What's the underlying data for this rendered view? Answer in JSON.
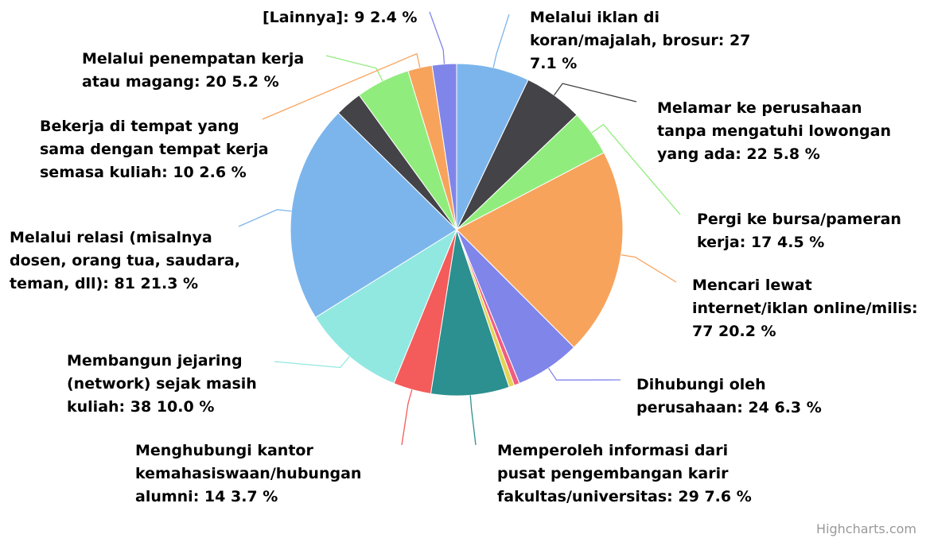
{
  "chart_data": {
    "type": "pie",
    "categories": [
      "Melalui iklan di koran/majalah, brosur:",
      "Melamar ke perusahaan tanpa mengatuhi lowongan yang ada:",
      "Pergi ke bursa/pameran kerja:",
      "Mencari lewat internet/iklan online/milis:",
      "Dihubungi oleh perusahaan:",
      null,
      null,
      "Memperoleh informasi dari pusat pengembangan karir fakultas/universitas:",
      "Menghubungi kantor kemahasiswaan/hubungan alumni:",
      "Membangun jejaring (network) sejak masih kuliah:",
      "Melalui relasi (misalnya dosen, orang tua, saudara, teman, dll):",
      "Bekerja di tempat yang sama dengan tempat kerja semasa kuliah:",
      "Melalui penempatan kerja atau magang:",
      null,
      "[Lainnya]:"
    ],
    "values": [
      27,
      22,
      17,
      77,
      24,
      2,
      2,
      29,
      14,
      38,
      81,
      10,
      20,
      9,
      9
    ],
    "value_labels": [
      "27 7.1 %",
      "22 5.8 %",
      "17 4.5 %",
      "77 20.2 %",
      "24 6.3 %",
      null,
      null,
      "29 7.6 %",
      "14 3.7 %",
      "38 10.0 %",
      "81 21.3 %",
      "10 2.6 %",
      "20 5.2 %",
      null,
      "9 2.4 %"
    ],
    "colors": [
      "#7cb5ec",
      "#434348",
      "#90ed7d",
      "#f7a35c",
      "#8085e9",
      "#f15c80",
      "#e4d354",
      "#2b908f",
      "#f45b5b",
      "#91e8e1",
      "#7cb5ec",
      "#434348",
      "#90ed7d",
      "#f7a35c",
      "#8085e9"
    ],
    "credits": "Highcharts.com"
  }
}
